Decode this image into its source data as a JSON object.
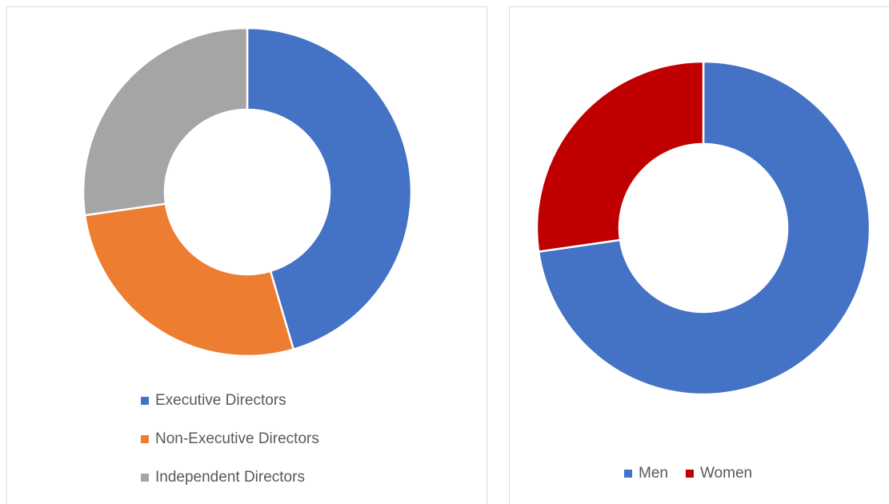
{
  "chart_data": [
    {
      "type": "donut",
      "categories": [
        "Executive Directors",
        "Non-Executive Directors",
        "Independent Directors"
      ],
      "values": [
        5,
        3,
        3
      ],
      "colors": [
        "#4472c4",
        "#ed7d31",
        "#a5a5a5"
      ],
      "legend": "bottom"
    },
    {
      "type": "donut",
      "categories": [
        "Men",
        "Women"
      ],
      "values": [
        8,
        3
      ],
      "colors": [
        "#4472c4",
        "#c00000"
      ],
      "legend": "bottom"
    }
  ]
}
